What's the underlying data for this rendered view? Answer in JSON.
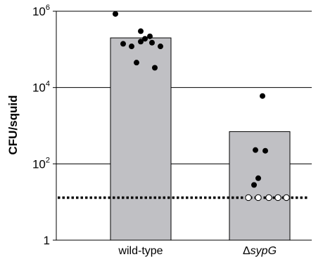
{
  "chart_data": {
    "type": "bar",
    "ylabel": "CFU/squid",
    "yscale": "log",
    "ylim": [
      1,
      1000000
    ],
    "y_ticks": [
      {
        "value": 1,
        "base": "1",
        "exp": ""
      },
      {
        "value": 100,
        "base": "10",
        "exp": "2"
      },
      {
        "value": 10000,
        "base": "10",
        "exp": "4"
      },
      {
        "value": 1000000,
        "base": "10",
        "exp": "6"
      }
    ],
    "grid": true,
    "categories": [
      {
        "label": "wild-type",
        "prefix": "",
        "italic": ""
      },
      {
        "label": "",
        "prefix": "Δ",
        "italic": "sypG"
      }
    ],
    "bar_values": [
      200000,
      700
    ],
    "bar_color": "#c0c0c4",
    "detection_limit": 13,
    "points": [
      {
        "category": 0,
        "filled": true,
        "values": [
          850000,
          140000,
          120000,
          160000,
          300000,
          190000,
          220000,
          150000,
          120000,
          45000,
          33000
        ]
      },
      {
        "category": 1,
        "filled": true,
        "values": [
          6000,
          230,
          220,
          42,
          28
        ]
      },
      {
        "category": 1,
        "filled": false,
        "values": [
          13,
          13,
          13,
          13,
          13
        ]
      }
    ]
  }
}
